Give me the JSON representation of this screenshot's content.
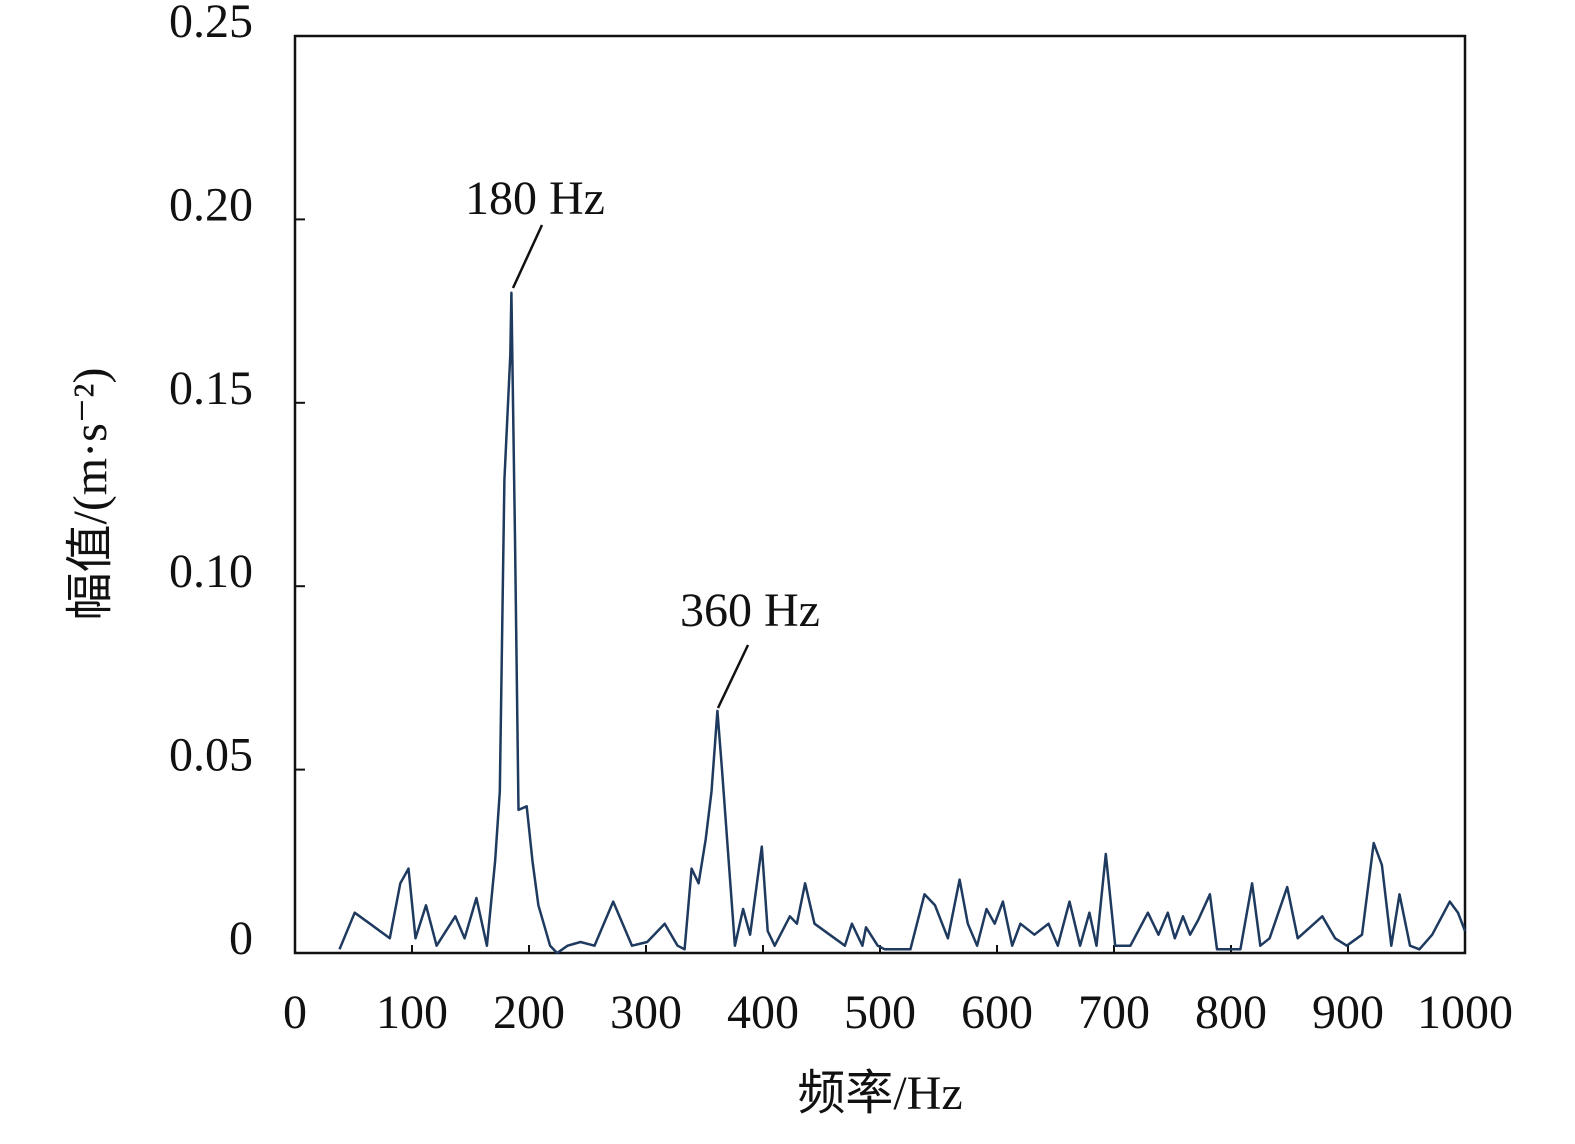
{
  "chart_data": {
    "type": "line",
    "xlabel": "频率/Hz",
    "ylabel": "幅值/(m·s⁻²)",
    "annotations": [
      "180 Hz",
      "360 Hz"
    ],
    "xlim": [
      0,
      1000
    ],
    "xticks": [
      0,
      100,
      200,
      300,
      400,
      500,
      600,
      700,
      800,
      900,
      1000
    ],
    "ylim": [
      0,
      0.25
    ],
    "yticks": [
      0,
      0.05,
      {
        "value": 0.1,
        "label": "0.10"
      },
      0.15,
      {
        "value": 0.2,
        "label": "0.20"
      },
      0.25
    ],
    "grid": false,
    "series": [
      {
        "color": "#1f3a5f",
        "x": [
          38,
          51,
          64,
          81,
          90,
          97,
          103,
          112,
          121,
          137,
          145,
          155,
          164,
          171,
          175,
          179,
          184,
          185,
          188,
          191,
          198,
          203,
          208,
          218,
          224,
          233,
          244,
          256,
          272,
          288,
          301,
          316,
          327,
          333,
          339,
          345,
          351,
          356,
          361,
          365,
          370,
          376,
          383,
          389,
          399,
          404,
          410,
          423,
          429,
          436,
          444,
          457,
          470,
          476,
          485,
          488,
          498,
          504,
          526,
          538,
          547,
          558,
          568,
          575,
          583,
          591,
          598,
          605,
          613,
          620,
          632,
          644,
          652,
          662,
          671,
          679,
          685,
          693,
          701,
          714,
          729,
          738,
          746,
          752,
          759,
          765,
          772,
          782,
          788,
          808,
          818,
          825,
          833,
          848,
          857,
          878,
          889,
          899,
          912,
          922,
          929,
          937,
          944,
          953,
          961,
          972,
          987,
          994,
          1000
        ],
        "values": [
          0.001,
          0.011,
          0.008,
          0.004,
          0.019,
          0.023,
          0.004,
          0.013,
          0.002,
          0.01,
          0.004,
          0.015,
          0.002,
          0.025,
          0.044,
          0.129,
          0.163,
          0.18,
          0.113,
          0.039,
          0.04,
          0.025,
          0.013,
          0.002,
          0,
          0.002,
          0.003,
          0.002,
          0.014,
          0.002,
          0.003,
          0.008,
          0.002,
          0.001,
          0.023,
          0.019,
          0.031,
          0.044,
          0.066,
          0.05,
          0.028,
          0.002,
          0.012,
          0.005,
          0.029,
          0.006,
          0.002,
          0.01,
          0.008,
          0.019,
          0.008,
          0.005,
          0.002,
          0.008,
          0.002,
          0.007,
          0.002,
          0.001,
          0.001,
          0.016,
          0.013,
          0.004,
          0.02,
          0.008,
          0.002,
          0.012,
          0.008,
          0.014,
          0.002,
          0.008,
          0.005,
          0.008,
          0.002,
          0.014,
          0.002,
          0.011,
          0.002,
          0.027,
          0.002,
          0.002,
          0.011,
          0.005,
          0.011,
          0.004,
          0.01,
          0.005,
          0.009,
          0.016,
          0.001,
          0.001,
          0.019,
          0.002,
          0.004,
          0.018,
          0.004,
          0.01,
          0.004,
          0.002,
          0.005,
          0.03,
          0.024,
          0.002,
          0.016,
          0.002,
          0.001,
          0.005,
          0.014,
          0.011,
          0.006
        ]
      }
    ]
  }
}
